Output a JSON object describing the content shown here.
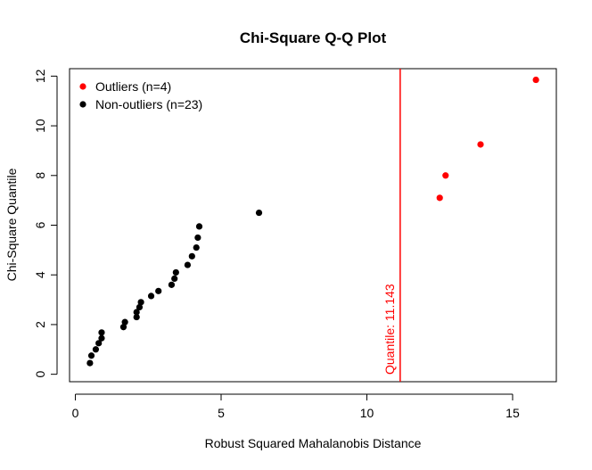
{
  "chart_data": {
    "type": "scatter",
    "title": "Chi-Square Q-Q Plot",
    "xlabel": "Robust Squared Mahalanobis Distance",
    "ylabel": "Chi-Square Quantile",
    "xlim": [
      -0.2,
      16.5
    ],
    "ylim": [
      -0.3,
      12.3
    ],
    "xticks": [
      0,
      5,
      10,
      15
    ],
    "yticks": [
      0,
      2,
      4,
      6,
      8,
      10,
      12
    ],
    "grid": false,
    "legend_position": "top-left",
    "series": [
      {
        "name": "Outliers (n=4)",
        "color": "#ff0000",
        "points": [
          [
            12.5,
            7.1
          ],
          [
            12.7,
            8.0
          ],
          [
            13.9,
            9.25
          ],
          [
            15.8,
            11.85
          ]
        ]
      },
      {
        "name": "Non-outliers (n=23)",
        "color": "#000000",
        "points": [
          [
            0.5,
            0.45
          ],
          [
            0.55,
            0.75
          ],
          [
            0.7,
            1.0
          ],
          [
            0.8,
            1.25
          ],
          [
            0.9,
            1.45
          ],
          [
            0.9,
            1.68
          ],
          [
            1.65,
            1.9
          ],
          [
            1.7,
            2.1
          ],
          [
            2.1,
            2.3
          ],
          [
            2.1,
            2.5
          ],
          [
            2.2,
            2.7
          ],
          [
            2.25,
            2.9
          ],
          [
            2.6,
            3.15
          ],
          [
            2.85,
            3.35
          ],
          [
            3.3,
            3.6
          ],
          [
            3.4,
            3.85
          ],
          [
            3.45,
            4.1
          ],
          [
            3.85,
            4.4
          ],
          [
            4.0,
            4.75
          ],
          [
            4.15,
            5.1
          ],
          [
            4.2,
            5.5
          ],
          [
            4.25,
            5.95
          ],
          [
            6.3,
            6.5
          ]
        ]
      }
    ],
    "annotations": [
      {
        "type": "vline",
        "x": 11.143,
        "color": "#ff0000",
        "label": "Quantile:  11.143"
      }
    ]
  }
}
